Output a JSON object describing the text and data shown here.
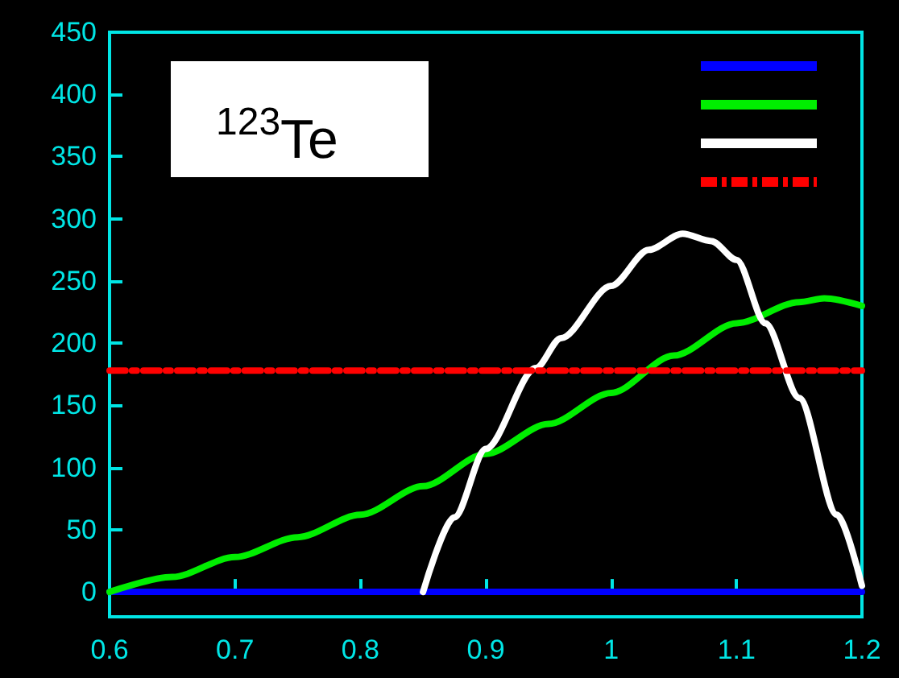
{
  "chart_data": {
    "type": "line",
    "annotations": [
      "$^{123}$Te"
    ],
    "xlim": [
      0.6,
      1.2
    ],
    "xticks": [
      0.6,
      0.7,
      0.8,
      0.9,
      1,
      1.1,
      1.2
    ],
    "ylim": [
      -20,
      450
    ],
    "yticks": [
      0,
      50,
      100,
      150,
      200,
      250,
      300,
      350,
      400,
      450
    ],
    "grid": false,
    "line_style": "solid",
    "series": [
      {
        "color": "#0000ff",
        "x": [
          0.6,
          1.2
        ],
        "values": [
          0,
          0
        ]
      },
      {
        "color": "#00ee00",
        "x": [
          0.6,
          0.65,
          0.7,
          0.75,
          0.8,
          0.85,
          0.9,
          0.95,
          1.0,
          1.05,
          1.1,
          1.15,
          1.17,
          1.2
        ],
        "values": [
          0,
          12,
          28,
          44,
          62,
          85,
          111,
          135,
          160,
          190,
          216,
          233,
          236,
          230
        ]
      },
      {
        "color": "#ffffff",
        "x": [
          0.85,
          0.875,
          0.9,
          0.94,
          0.96,
          1.0,
          1.03,
          1.057,
          1.08,
          1.1,
          1.123,
          1.15,
          1.18,
          1.2
        ],
        "values": [
          0,
          60,
          115,
          180,
          204,
          246,
          275,
          288,
          282,
          267,
          216,
          156,
          62,
          5
        ]
      },
      {
        "color": "#ff0000",
        "x": [
          0.6,
          1.2
        ],
        "values": [
          178,
          178
        ],
        "line_style": "dashed"
      }
    ]
  }
}
